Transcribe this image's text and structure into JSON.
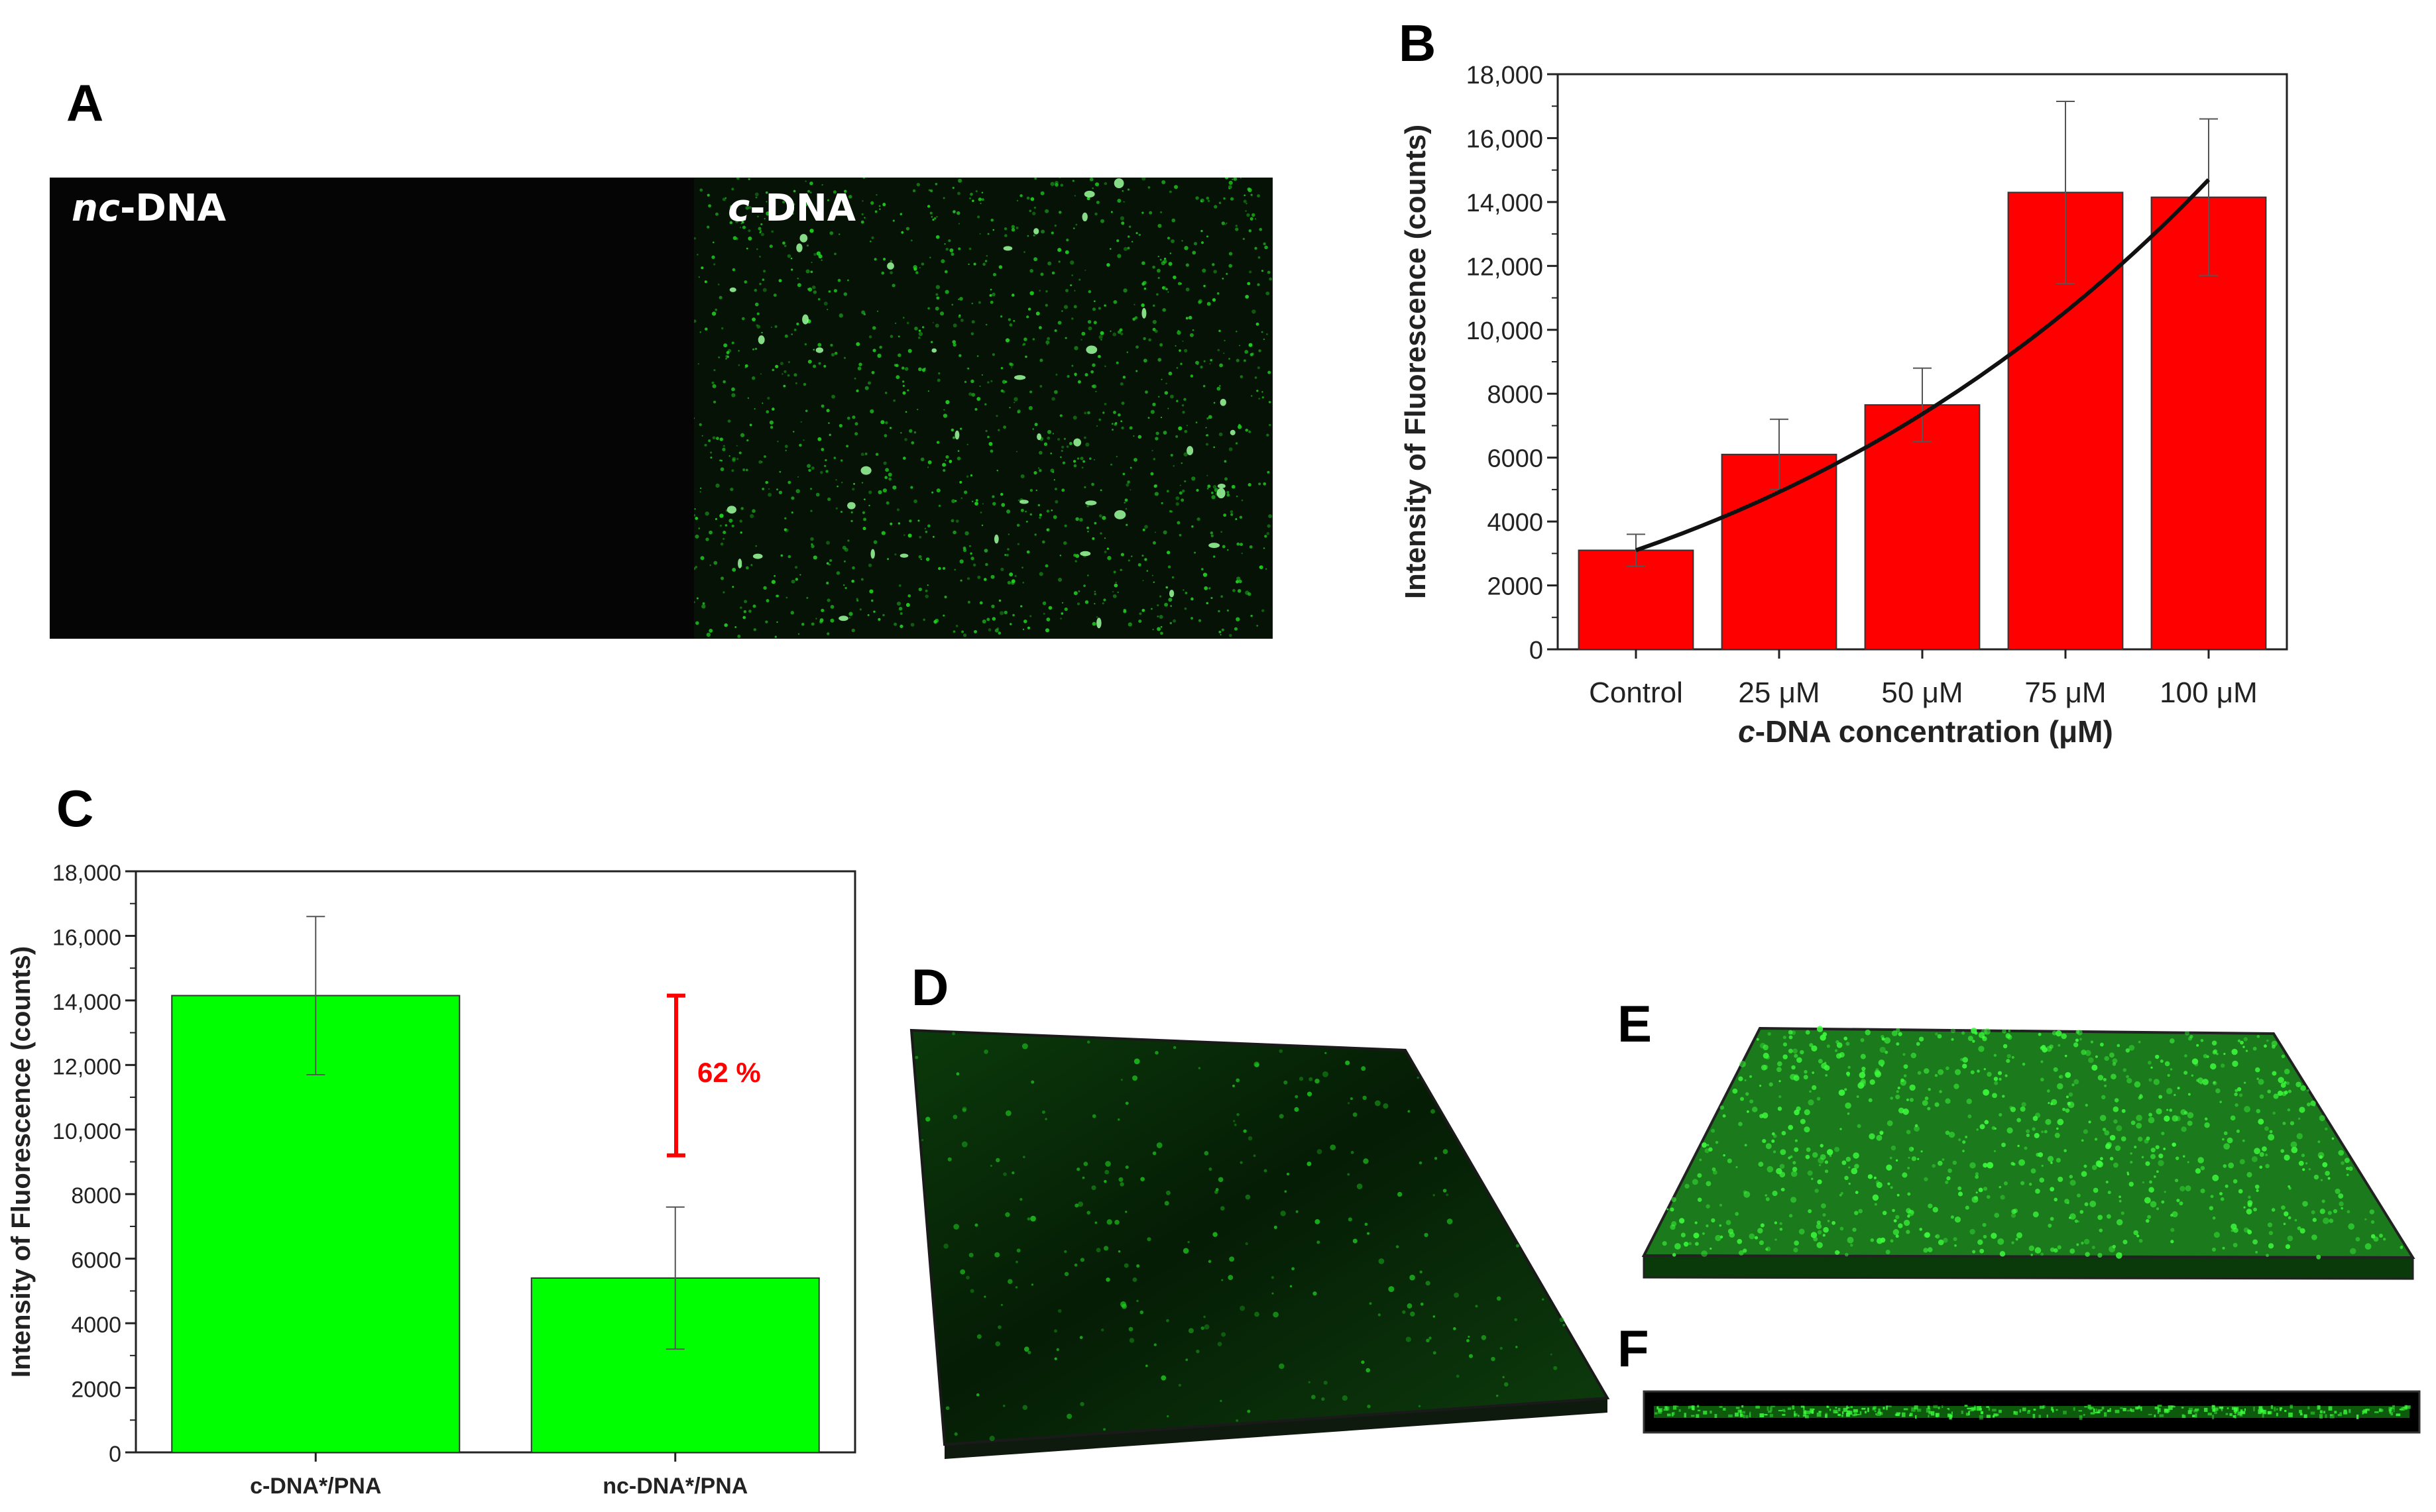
{
  "panels": {
    "a": {
      "letter": "A",
      "left_italic": "nc",
      "left_rest": "-DNA",
      "right_italic": "c",
      "right_rest": "-DNA"
    },
    "b": {
      "letter": "B"
    },
    "c": {
      "letter": "C"
    },
    "d": {
      "letter": "D"
    },
    "e": {
      "letter": "E"
    },
    "f": {
      "letter": "F"
    }
  },
  "colors": {
    "panel_b_bar": "#ff0000",
    "panel_c_bar": "#00ff00",
    "micro_green": "#1fd11f",
    "annotation_red": "#ff0000"
  },
  "chart_data": [
    {
      "id": "B",
      "type": "bar",
      "categories": [
        "Control",
        "25 μM",
        "50 μM",
        "75 μM",
        "100 μM"
      ],
      "values": [
        3100,
        6100,
        7650,
        14300,
        14150
      ],
      "errors": [
        500,
        1100,
        1150,
        2850,
        2450
      ],
      "trend_line": {
        "type": "quadratic-fit",
        "from": [
          0,
          3100
        ],
        "to": [
          4,
          14700
        ]
      },
      "xlabel_italic": "c",
      "xlabel_rest": "-DNA concentration (μM)",
      "ylabel": "Intensity of Fluorescence (counts)",
      "ylim": [
        0,
        18000
      ],
      "yticks": [
        0,
        2000,
        4000,
        6000,
        8000,
        10000,
        12000,
        14000,
        16000,
        18000
      ],
      "ytick_labels": [
        "0",
        "2000",
        "4000",
        "6000",
        "8000",
        "10,000",
        "12,000",
        "14,000",
        "16,000",
        "18,000"
      ],
      "grid": false
    },
    {
      "id": "C",
      "type": "bar",
      "categories": [
        "c-DNA*/PNA",
        "nc-DNA*/PNA"
      ],
      "values": [
        14150,
        5400
      ],
      "errors": [
        2450,
        2200
      ],
      "annotation": {
        "text": "62 %",
        "from": 9200,
        "to": 14150
      },
      "ylabel": "Intensity of Fluorescence (counts)",
      "ylim": [
        0,
        18000
      ],
      "yticks": [
        0,
        2000,
        4000,
        6000,
        8000,
        10000,
        12000,
        14000,
        16000,
        18000
      ],
      "ytick_labels": [
        "0",
        "2000",
        "4000",
        "6000",
        "8000",
        "10,000",
        "12,000",
        "14,000",
        "16,000",
        "18,000"
      ],
      "grid": false
    }
  ]
}
